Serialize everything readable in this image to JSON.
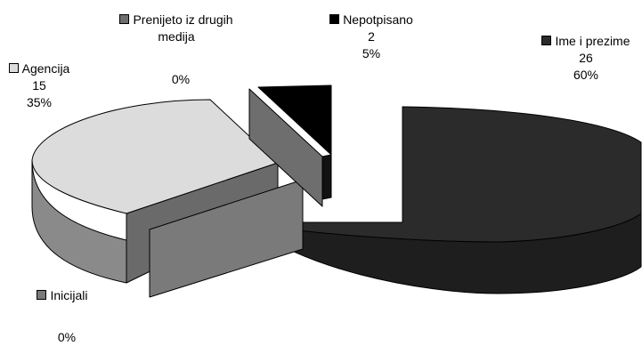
{
  "chart_data": {
    "type": "pie",
    "style": "3d-exploded",
    "title": "",
    "slices": [
      {
        "name": "Ime i prezime",
        "value": 26,
        "percent": "60%",
        "color": "#2b2b2b"
      },
      {
        "name": "Agencija",
        "value": 15,
        "percent": "35%",
        "color": "#dcdcdc"
      },
      {
        "name": "Inicijali",
        "value": 0,
        "percent": "0%",
        "color": "#7a7a7a"
      },
      {
        "name": "Prenijeto iz drugih medija",
        "value": 0,
        "percent": "0%",
        "color": "#6e6e6e"
      },
      {
        "name": "Nepotpisano",
        "value": 2,
        "percent": "5%",
        "color": "#000000"
      }
    ],
    "labels": {
      "ime_name": "Ime i prezime",
      "ime_value": "26",
      "ime_pct": "60%",
      "agencija_name": "Agencija",
      "agencija_value": "15",
      "agencija_pct": "35%",
      "inicijali_name": "Inicijali",
      "inicijali_pct": "0%",
      "prenijeto_name_1": "Prenijeto iz drugih",
      "prenijeto_name_2": "medija",
      "prenijeto_pct": "0%",
      "nepotpisano_name": "Nepotpisano",
      "nepotpisano_value": "2",
      "nepotpisano_pct": "5%"
    }
  }
}
